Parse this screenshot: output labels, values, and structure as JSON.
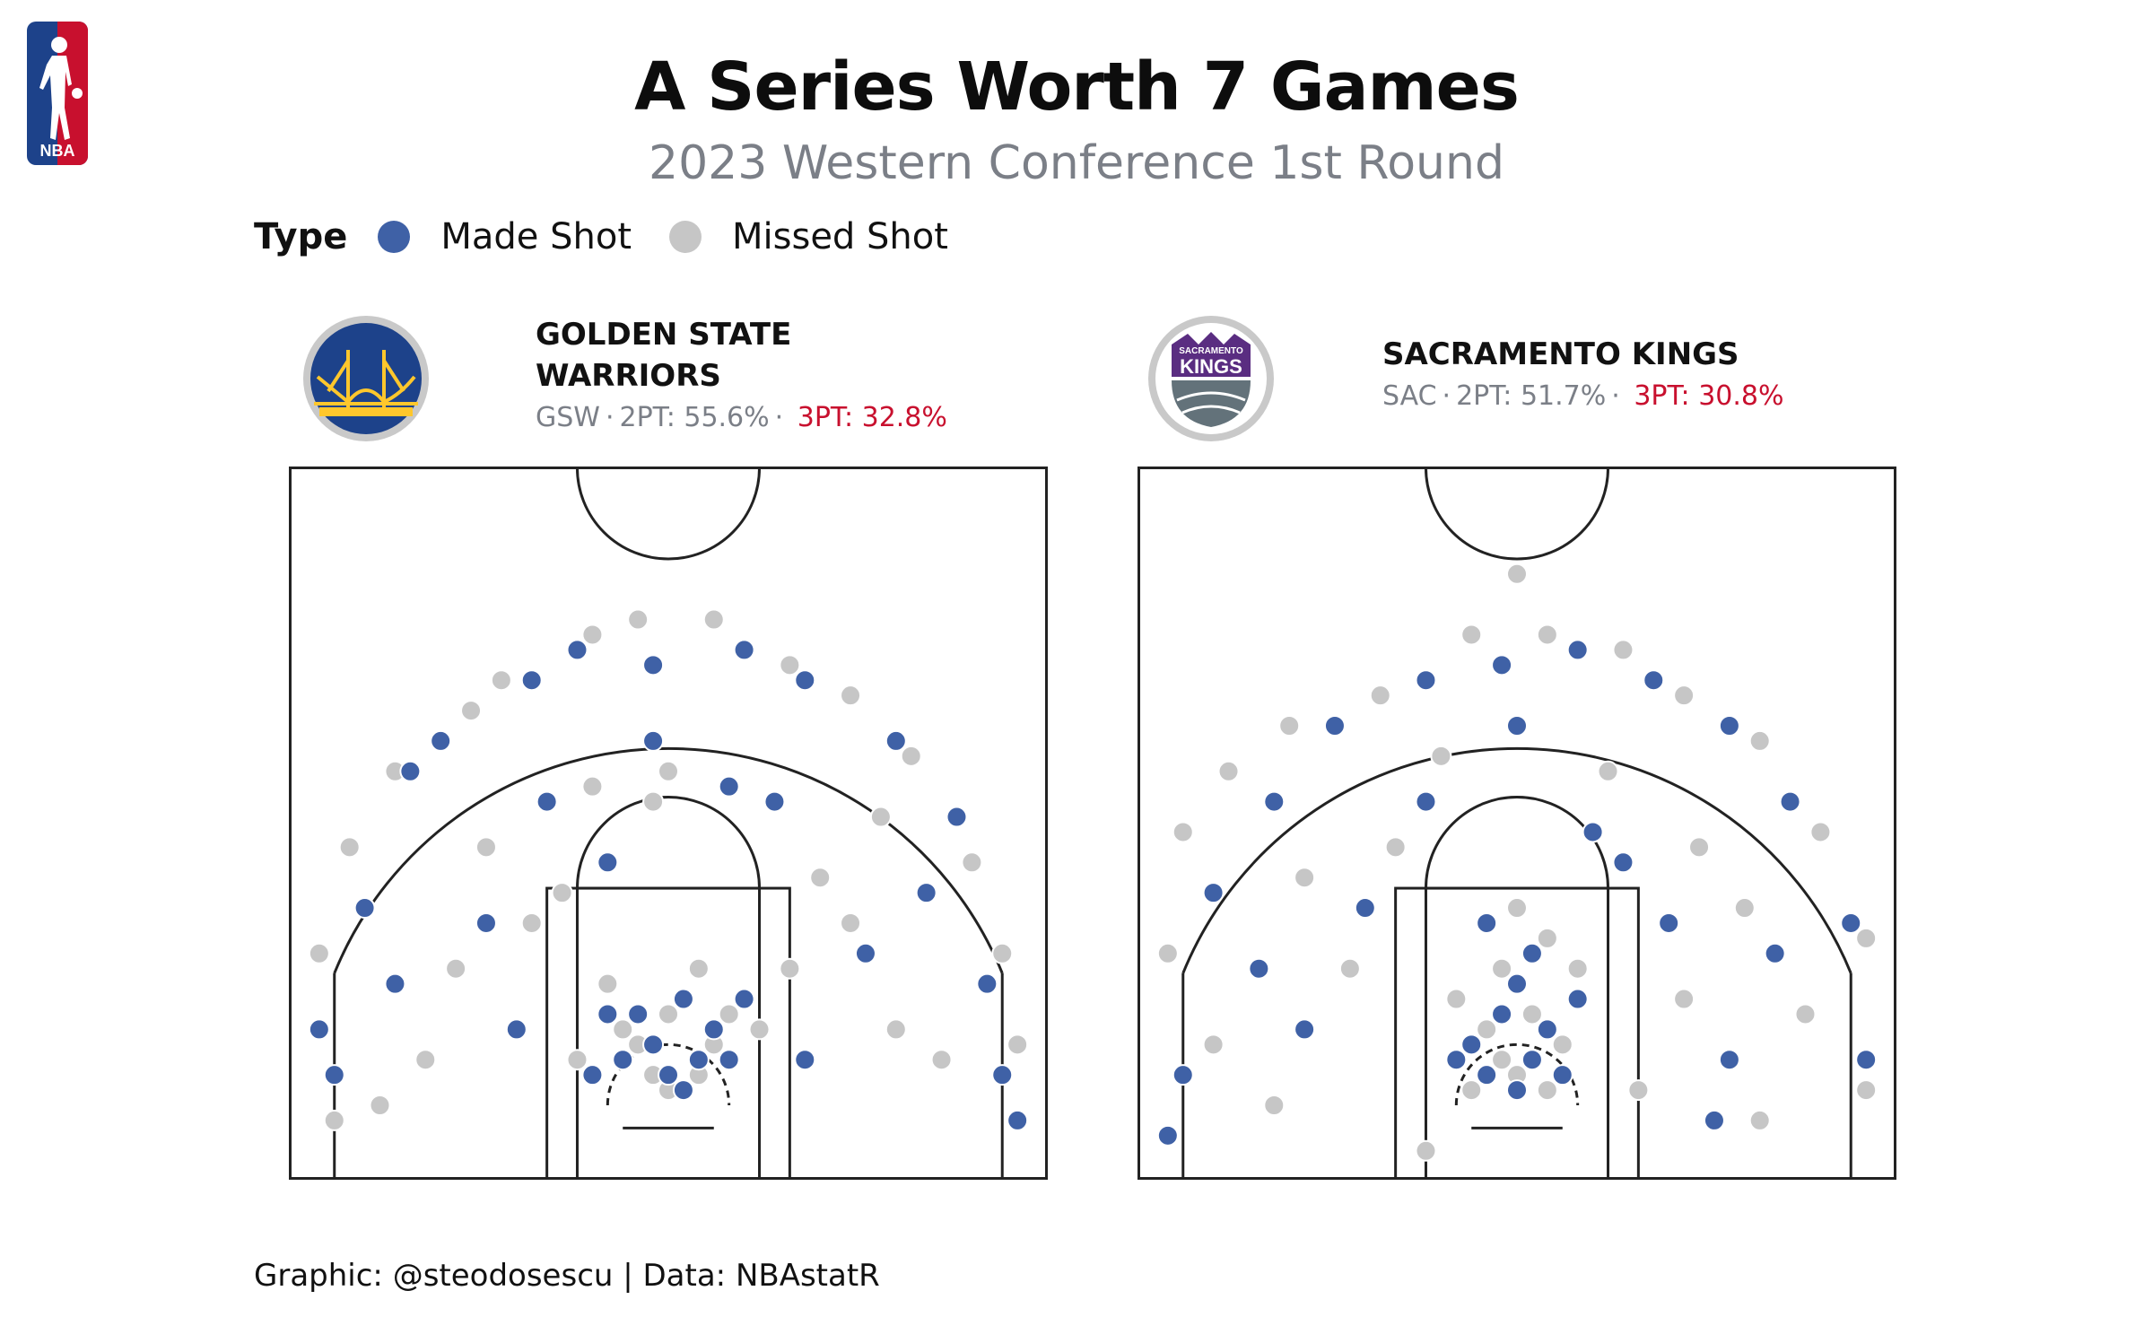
{
  "title": "A Series Worth 7 Games",
  "subtitle": "2023 Western Conference 1st Round",
  "legend": {
    "title": "Type",
    "items": [
      {
        "label": "Made Shot",
        "color": "#3f61a6"
      },
      {
        "label": "Missed Shot",
        "color": "#c6c6c6"
      }
    ]
  },
  "nba_logo": {
    "icon": "nba-logo-icon",
    "text": "NBA"
  },
  "teams": [
    {
      "name_line1": "GOLDEN STATE",
      "name_line2": "WARRIORS",
      "abbr": "GSW",
      "two_pt": "2PT: 55.6%",
      "three_pt": "3PT: 32.8%",
      "logo_icon": "warriors-logo-icon"
    },
    {
      "name_line1": "SACRAMENTO KINGS",
      "name_line2": "",
      "abbr": "SAC",
      "two_pt": "2PT: 51.7%",
      "three_pt": "3PT: 30.8%",
      "logo_icon": "kings-logo-icon",
      "logo_text_top": "SACRAMENTO",
      "logo_text_main": "KINGS"
    }
  ],
  "separator": "·",
  "footer": "Graphic: @steodosescu | Data: NBAstatR",
  "chart_data": [
    {
      "type": "scatter",
      "team": "GSW",
      "units": "feet from basket (x: left-right, y: toward half court)",
      "xlim": [
        -25,
        25
      ],
      "ylim": [
        -5,
        42
      ],
      "made": [
        [
          0,
          2
        ],
        [
          2,
          3
        ],
        [
          -3,
          3
        ],
        [
          4,
          3
        ],
        [
          -5,
          2
        ],
        [
          1,
          1
        ],
        [
          -1,
          4
        ],
        [
          3,
          5
        ],
        [
          -2,
          6
        ],
        [
          1,
          7
        ],
        [
          5,
          7
        ],
        [
          -4,
          6
        ],
        [
          -20,
          13
        ],
        [
          -22,
          2
        ],
        [
          -17,
          22
        ],
        [
          -15,
          24
        ],
        [
          -9,
          28
        ],
        [
          -6,
          30
        ],
        [
          -1,
          29
        ],
        [
          5,
          30
        ],
        [
          9,
          28
        ],
        [
          15,
          24
        ],
        [
          19,
          19
        ],
        [
          21,
          8
        ],
        [
          22,
          2
        ],
        [
          -23,
          5
        ],
        [
          7,
          20
        ],
        [
          -12,
          12
        ],
        [
          13,
          10
        ],
        [
          -8,
          20
        ],
        [
          4,
          21
        ],
        [
          -4,
          16
        ],
        [
          9,
          3
        ],
        [
          -18,
          8
        ],
        [
          17,
          14
        ],
        [
          -10,
          5
        ],
        [
          23,
          -1
        ],
        [
          -1,
          24
        ]
      ],
      "missed": [
        [
          0,
          1
        ],
        [
          -1,
          2
        ],
        [
          2,
          2
        ],
        [
          3,
          4
        ],
        [
          -3,
          5
        ],
        [
          0,
          6
        ],
        [
          -2,
          4
        ],
        [
          4,
          6
        ],
        [
          -4,
          8
        ],
        [
          2,
          9
        ],
        [
          -6,
          3
        ],
        [
          6,
          5
        ],
        [
          -23,
          10
        ],
        [
          -21,
          17
        ],
        [
          -18,
          22
        ],
        [
          -13,
          26
        ],
        [
          -11,
          28
        ],
        [
          -5,
          31
        ],
        [
          -2,
          32
        ],
        [
          3,
          32
        ],
        [
          8,
          29
        ],
        [
          12,
          27
        ],
        [
          16,
          23
        ],
        [
          20,
          16
        ],
        [
          22,
          10
        ],
        [
          23,
          4
        ],
        [
          -22,
          -1
        ],
        [
          -16,
          3
        ],
        [
          -14,
          9
        ],
        [
          -9,
          12
        ],
        [
          -7,
          14
        ],
        [
          -1,
          20
        ],
        [
          0,
          22
        ],
        [
          10,
          15
        ],
        [
          12,
          12
        ],
        [
          15,
          5
        ],
        [
          18,
          3
        ],
        [
          -5,
          21
        ],
        [
          -19,
          0
        ],
        [
          8,
          9
        ],
        [
          -12,
          17
        ],
        [
          14,
          19
        ]
      ]
    },
    {
      "type": "scatter",
      "team": "SAC",
      "units": "feet from basket (x: left-right, y: toward half court)",
      "xlim": [
        -25,
        25
      ],
      "ylim": [
        -5,
        42
      ],
      "made": [
        [
          0,
          1
        ],
        [
          1,
          3
        ],
        [
          -2,
          2
        ],
        [
          3,
          2
        ],
        [
          -3,
          4
        ],
        [
          2,
          5
        ],
        [
          -1,
          6
        ],
        [
          0,
          8
        ],
        [
          4,
          7
        ],
        [
          -4,
          3
        ],
        [
          1,
          10
        ],
        [
          -2,
          12
        ],
        [
          -22,
          2
        ],
        [
          -20,
          14
        ],
        [
          -16,
          20
        ],
        [
          -12,
          25
        ],
        [
          -6,
          28
        ],
        [
          -1,
          29
        ],
        [
          4,
          30
        ],
        [
          9,
          28
        ],
        [
          14,
          25
        ],
        [
          18,
          20
        ],
        [
          22,
          12
        ],
        [
          23,
          3
        ],
        [
          -10,
          13
        ],
        [
          10,
          12
        ],
        [
          -14,
          5
        ],
        [
          14,
          3
        ],
        [
          -6,
          20
        ],
        [
          7,
          16
        ],
        [
          0,
          25
        ],
        [
          -17,
          9
        ],
        [
          17,
          10
        ],
        [
          13,
          -1
        ],
        [
          -23,
          -2
        ],
        [
          5,
          18
        ]
      ],
      "missed": [
        [
          0,
          2
        ],
        [
          -1,
          3
        ],
        [
          2,
          1
        ],
        [
          -3,
          1
        ],
        [
          3,
          4
        ],
        [
          -2,
          5
        ],
        [
          1,
          6
        ],
        [
          -4,
          7
        ],
        [
          4,
          9
        ],
        [
          -1,
          9
        ],
        [
          2,
          11
        ],
        [
          0,
          13
        ],
        [
          -23,
          10
        ],
        [
          -22,
          18
        ],
        [
          -19,
          22
        ],
        [
          -15,
          25
        ],
        [
          -9,
          27
        ],
        [
          -3,
          31
        ],
        [
          2,
          31
        ],
        [
          7,
          30
        ],
        [
          11,
          27
        ],
        [
          16,
          24
        ],
        [
          20,
          18
        ],
        [
          23,
          11
        ],
        [
          23,
          1
        ],
        [
          -8,
          17
        ],
        [
          -11,
          9
        ],
        [
          11,
          7
        ],
        [
          15,
          13
        ],
        [
          -16,
          0
        ],
        [
          16,
          -1
        ],
        [
          -5,
          23
        ],
        [
          6,
          22
        ],
        [
          12,
          17
        ],
        [
          -14,
          15
        ],
        [
          -6,
          -3
        ],
        [
          8,
          1
        ],
        [
          -20,
          4
        ],
        [
          19,
          6
        ],
        [
          0,
          35
        ]
      ]
    }
  ]
}
